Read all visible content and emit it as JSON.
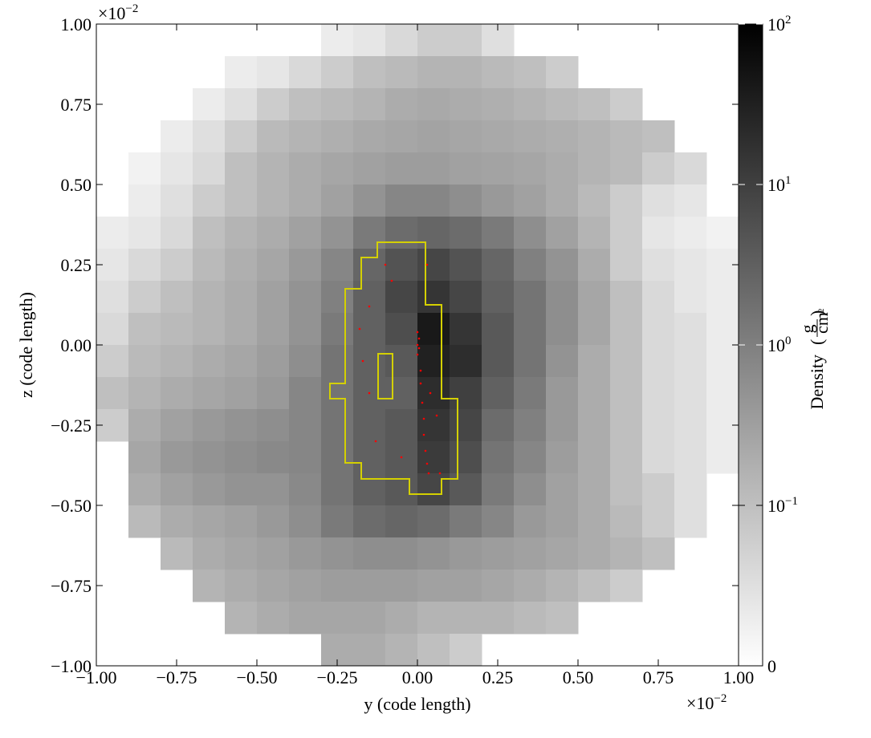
{
  "chart_data": {
    "type": "heatmap",
    "x_label": "y  (code length)",
    "y_label": "z  (code length)",
    "x_offset": {
      "base": "×10",
      "exponent": "−2"
    },
    "y_offset": {
      "base": "×10",
      "exponent": "−2"
    },
    "xlim": [
      -1,
      1
    ],
    "ylim": [
      -1,
      1
    ],
    "xticks": [
      {
        "value": -1,
        "label": "−1.00"
      },
      {
        "value": -0.75,
        "label": "−0.75"
      },
      {
        "value": -0.5,
        "label": "−0.50"
      },
      {
        "value": -0.25,
        "label": "−0.25"
      },
      {
        "value": 0,
        "label": "0.00"
      },
      {
        "value": 0.25,
        "label": "0.25"
      },
      {
        "value": 0.5,
        "label": "0.50"
      },
      {
        "value": 0.75,
        "label": "0.75"
      },
      {
        "value": 1,
        "label": "1.00"
      }
    ],
    "yticks": [
      {
        "value": -1,
        "label": "−1.00"
      },
      {
        "value": -0.75,
        "label": "−0.75"
      },
      {
        "value": -0.5,
        "label": "−0.50"
      },
      {
        "value": -0.25,
        "label": "−0.25"
      },
      {
        "value": 0,
        "label": "0.00"
      },
      {
        "value": 0.25,
        "label": "0.25"
      },
      {
        "value": 0.5,
        "label": "0.50"
      },
      {
        "value": 0.75,
        "label": "0.75"
      },
      {
        "value": 1,
        "label": "1.00"
      }
    ],
    "values": [
      [
        null,
        null,
        null,
        null,
        null,
        null,
        null,
        0.03,
        0.04,
        0.06,
        0.08,
        0.08,
        0.05,
        null,
        null,
        null,
        null,
        null,
        null,
        null
      ],
      [
        null,
        null,
        null,
        null,
        0.03,
        0.04,
        0.06,
        0.08,
        0.1,
        0.12,
        0.15,
        0.15,
        0.12,
        0.1,
        0.08,
        null,
        null,
        null,
        null,
        null
      ],
      [
        null,
        null,
        null,
        0.03,
        0.05,
        0.08,
        0.1,
        0.12,
        0.15,
        0.2,
        0.22,
        0.2,
        0.18,
        0.15,
        0.12,
        0.1,
        0.08,
        null,
        null,
        null
      ],
      [
        null,
        null,
        0.03,
        0.05,
        0.08,
        0.12,
        0.15,
        0.18,
        0.22,
        0.25,
        0.28,
        0.25,
        0.22,
        0.2,
        0.18,
        0.15,
        0.12,
        0.1,
        null,
        null
      ],
      [
        null,
        0.02,
        0.04,
        0.06,
        0.1,
        0.15,
        0.2,
        0.25,
        0.3,
        0.35,
        0.35,
        0.3,
        0.28,
        0.25,
        0.2,
        0.15,
        0.12,
        0.08,
        0.06,
        null
      ],
      [
        null,
        0.03,
        0.05,
        0.08,
        0.1,
        0.15,
        0.2,
        0.3,
        0.5,
        0.8,
        0.8,
        0.6,
        0.4,
        0.3,
        0.2,
        0.12,
        0.08,
        0.05,
        0.04,
        null
      ],
      [
        0.03,
        0.04,
        0.06,
        0.1,
        0.15,
        0.2,
        0.3,
        0.5,
        1.2,
        2,
        2.5,
        2,
        1.2,
        0.6,
        0.3,
        0.15,
        0.08,
        0.04,
        0.03,
        0.02
      ],
      [
        0.04,
        0.06,
        0.08,
        0.12,
        0.18,
        0.25,
        0.4,
        0.8,
        2.5,
        5,
        8,
        5,
        2.5,
        1,
        0.5,
        0.2,
        0.08,
        0.05,
        0.04,
        0.03
      ],
      [
        0.05,
        0.08,
        0.1,
        0.15,
        0.2,
        0.3,
        0.5,
        1,
        3,
        8,
        15,
        8,
        3,
        1.5,
        0.6,
        0.25,
        0.1,
        0.06,
        0.04,
        0.03
      ],
      [
        0.06,
        0.1,
        0.12,
        0.15,
        0.2,
        0.3,
        0.5,
        1.2,
        3,
        6,
        40,
        15,
        4,
        1.5,
        0.6,
        0.25,
        0.1,
        0.06,
        0.05,
        0.03
      ],
      [
        0.08,
        0.12,
        0.15,
        0.2,
        0.25,
        0.35,
        0.6,
        1.5,
        3,
        4,
        30,
        20,
        4,
        1.5,
        0.5,
        0.2,
        0.1,
        0.06,
        0.05,
        0.03
      ],
      [
        0.1,
        0.15,
        0.2,
        0.25,
        0.3,
        0.4,
        0.8,
        1.5,
        3,
        3,
        20,
        10,
        3,
        1.2,
        0.4,
        0.2,
        0.1,
        0.06,
        0.05,
        0.03
      ],
      [
        0.08,
        0.2,
        0.3,
        0.4,
        0.5,
        0.6,
        0.8,
        1.5,
        3,
        4,
        15,
        8,
        2,
        1,
        0.4,
        0.2,
        0.1,
        0.06,
        0.05,
        0.03
      ],
      [
        null,
        0.25,
        0.4,
        0.5,
        0.6,
        0.7,
        0.8,
        1.5,
        3,
        4,
        12,
        6,
        1.5,
        0.8,
        0.35,
        0.2,
        0.1,
        0.06,
        0.05,
        0.03
      ],
      [
        null,
        0.2,
        0.3,
        0.4,
        0.5,
        0.5,
        0.7,
        1.5,
        3,
        4,
        8,
        4,
        1.2,
        0.6,
        0.3,
        0.2,
        0.1,
        0.08,
        0.05,
        null
      ],
      [
        null,
        0.12,
        0.2,
        0.25,
        0.3,
        0.4,
        0.6,
        1.2,
        2,
        2.5,
        2,
        1.2,
        0.8,
        0.4,
        0.3,
        0.2,
        0.12,
        0.08,
        0.05,
        null
      ],
      [
        null,
        null,
        0.12,
        0.2,
        0.25,
        0.3,
        0.4,
        0.5,
        0.6,
        0.6,
        0.5,
        0.4,
        0.35,
        0.3,
        0.25,
        0.2,
        0.15,
        0.1,
        null,
        null
      ],
      [
        null,
        null,
        null,
        0.15,
        0.2,
        0.25,
        0.3,
        0.35,
        0.35,
        0.35,
        0.3,
        0.3,
        0.25,
        0.2,
        0.15,
        0.1,
        0.08,
        null,
        null,
        null
      ],
      [
        null,
        null,
        null,
        null,
        0.15,
        0.2,
        0.25,
        0.25,
        0.25,
        0.2,
        0.15,
        0.15,
        0.15,
        0.12,
        0.1,
        null,
        null,
        null,
        null,
        null
      ],
      [
        null,
        null,
        null,
        null,
        null,
        null,
        null,
        0.2,
        0.2,
        0.15,
        0.1,
        0.08,
        null,
        null,
        null,
        null,
        null,
        null,
        null,
        null
      ]
    ],
    "particles": {
      "color": "#ff0000",
      "x": [
        0.0,
        0.005,
        0.0,
        0.005,
        0.0,
        0.01,
        0.01,
        0.015,
        0.02,
        0.02,
        0.025,
        0.03,
        0.035,
        -0.1,
        -0.15,
        -0.18,
        -0.15,
        -0.13,
        -0.08,
        0.03,
        0.06,
        0.04,
        -0.05,
        0.07,
        -0.17
      ],
      "y": [
        0.04,
        0.02,
        0.0,
        -0.01,
        -0.03,
        -0.08,
        -0.12,
        -0.18,
        -0.23,
        -0.28,
        -0.33,
        -0.37,
        -0.4,
        0.25,
        0.12,
        0.05,
        -0.15,
        -0.3,
        0.2,
        0.25,
        -0.22,
        -0.15,
        -0.35,
        -0.4,
        -0.05
      ]
    },
    "colorbar": {
      "label": "Density",
      "unit_numerator": "g",
      "unit_denominator": "cm",
      "unit_denominator_exponent": "2",
      "scale": "symlog",
      "linthresh": 0.1,
      "lim": [
        0,
        100
      ],
      "ticks": [
        0,
        {
          "value": 0.1,
          "label": "10",
          "exponent": "−1"
        },
        {
          "value": 1,
          "label": "10",
          "exponent": "0"
        },
        {
          "value": 10,
          "label": "10",
          "exponent": "1"
        },
        {
          "value": 100,
          "label": "10",
          "exponent": "2"
        }
      ]
    }
  }
}
